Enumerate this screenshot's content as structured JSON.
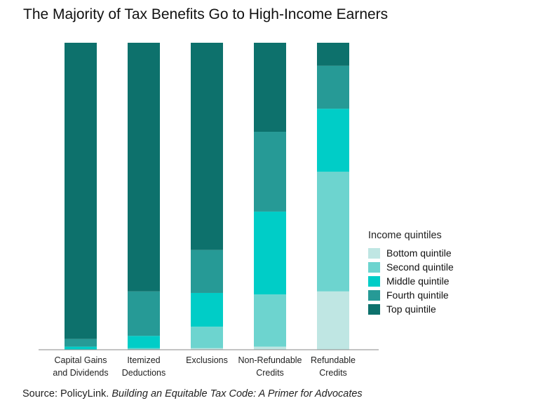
{
  "title": "The Majority of Tax Benefits Go to High-Income Earners",
  "source": {
    "prefix": "Source: PolicyLink. ",
    "publication": "Building an Equitable Tax Code:  A Primer for Advocates"
  },
  "chart_data": {
    "type": "bar",
    "stacked": true,
    "normalized_100_percent": true,
    "categories": [
      [
        "Capital Gains",
        "and Dividends"
      ],
      [
        "Itemized",
        "Deductions"
      ],
      [
        "Exclusions"
      ],
      [
        "Non-Refundable",
        "Credits"
      ],
      [
        "Refundable",
        "Credits"
      ]
    ],
    "legend_title": "Income quintiles",
    "legend_position": "right",
    "y_axis_visible": false,
    "grid": false,
    "ylim": [
      0,
      100
    ],
    "series": [
      {
        "name": "Bottom quintile",
        "color": "#bfe6e3",
        "values": [
          0,
          0,
          0.5,
          1,
          19
        ]
      },
      {
        "name": "Second quintile",
        "color": "#6dd4cf",
        "values": [
          0,
          0.5,
          7,
          17,
          39
        ]
      },
      {
        "name": "Middle quintile",
        "color": "#00cdc7",
        "values": [
          1,
          4,
          11,
          27,
          20.5
        ]
      },
      {
        "name": "Fourth quintile",
        "color": "#269a96",
        "values": [
          2.5,
          14.5,
          14,
          26,
          14
        ]
      },
      {
        "name": "Top quintile",
        "color": "#0d716c",
        "values": [
          96.5,
          81,
          67.5,
          29,
          7.5
        ]
      }
    ]
  }
}
